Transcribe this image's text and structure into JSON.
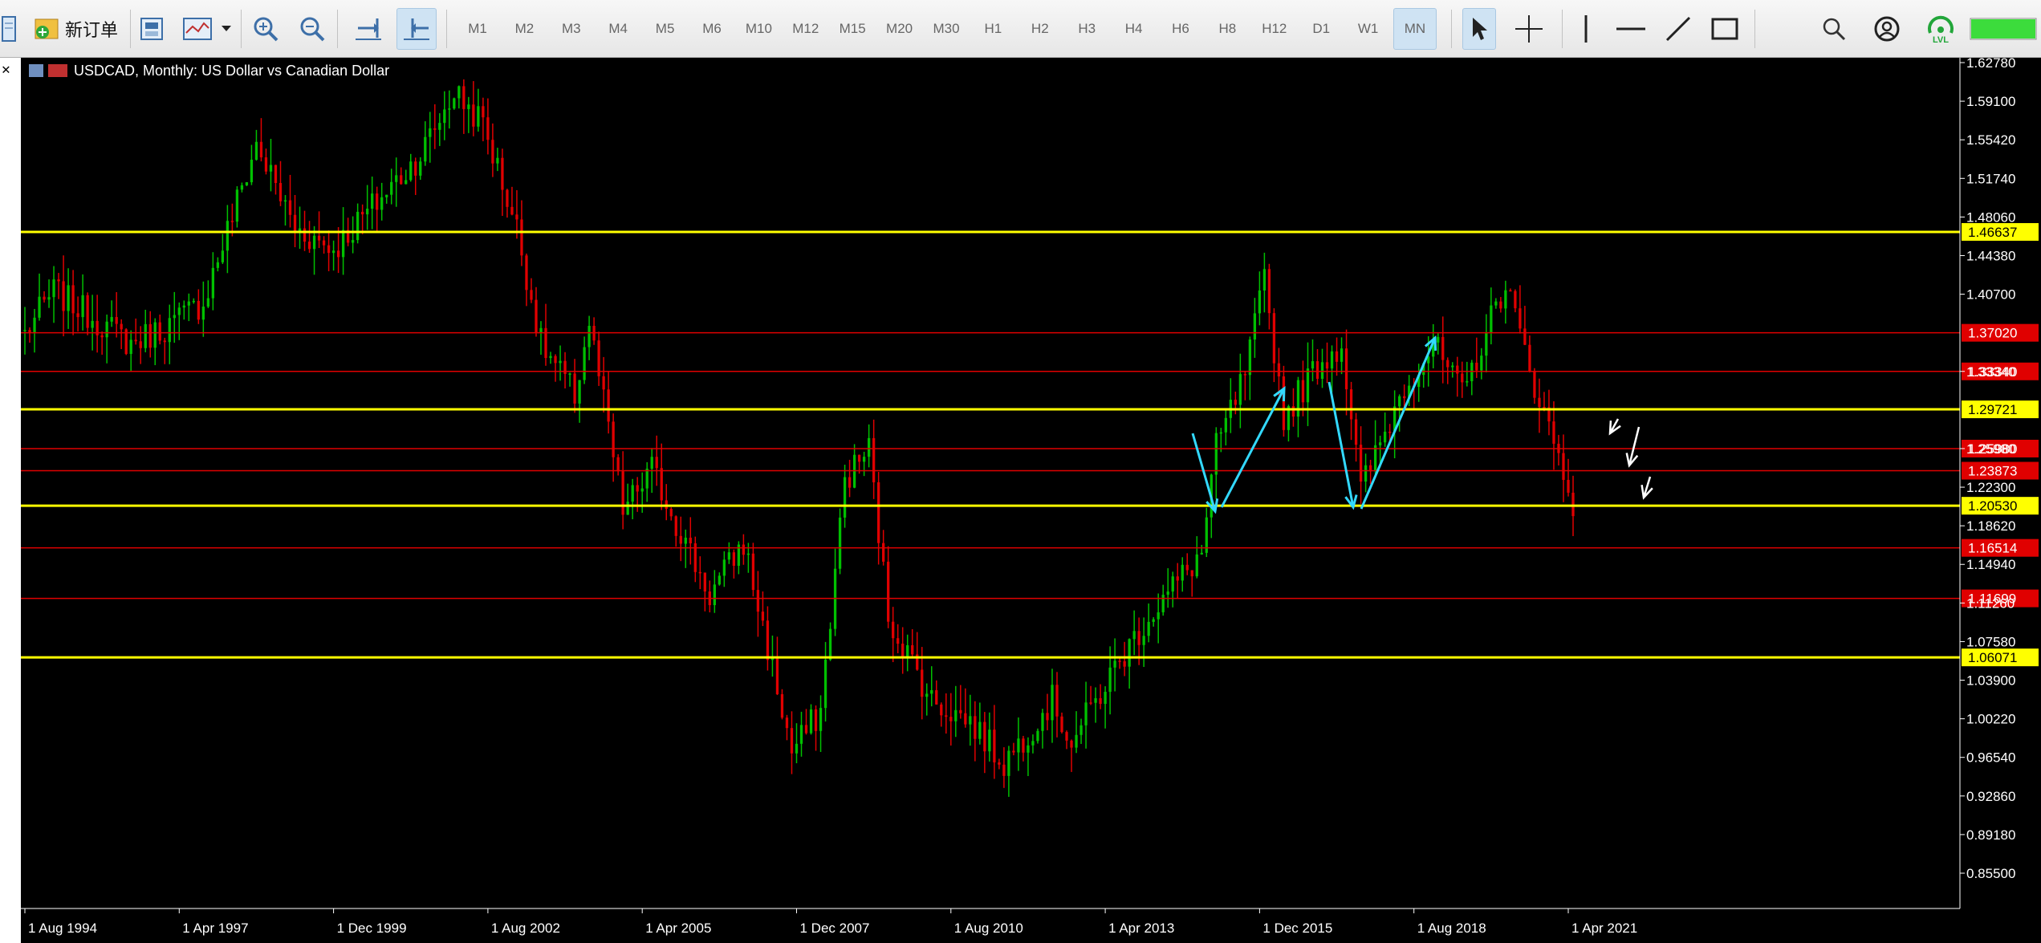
{
  "toolbar": {
    "new_order_label": "新订单",
    "timeframes": [
      "M1",
      "M2",
      "M3",
      "M4",
      "M5",
      "M6",
      "M10",
      "M12",
      "M15",
      "M20",
      "M30",
      "H1",
      "H2",
      "H3",
      "H4",
      "H6",
      "H8",
      "H12",
      "D1",
      "W1",
      "MN"
    ],
    "active_timeframe": "MN",
    "icons": [
      "chart-window-icon",
      "new-order-icon",
      "template-icon",
      "indicators-icon",
      "dropdown-icon",
      "zoom-in-icon",
      "zoom-out-icon",
      "autoscroll-icon",
      "chart-shift-icon",
      "cursor-icon",
      "crosshair-icon",
      "vertical-line-icon",
      "horizontal-line-icon",
      "trendline-icon",
      "rectangle-icon",
      "search-icon",
      "account-icon",
      "lvl-signal-icon",
      "connection-status-icon"
    ],
    "lvl_label": "LVL"
  },
  "chart": {
    "title": "USDCAD, Monthly:  US Dollar vs Canadian Dollar",
    "colors": {
      "background": "#000000",
      "bull": "#00c000",
      "bear": "#e00000",
      "yellow_line": "#ffff00",
      "red_line": "#e00000",
      "arrow": "#33d9ff",
      "white_arrow": "#ffffff"
    },
    "price_labels": [
      "1.62780",
      "1.59100",
      "1.55420",
      "1.51740",
      "1.48060",
      "1.44380",
      "1.40700",
      "1.33340",
      "1.25980",
      "1.22300",
      "1.18620",
      "1.14940",
      "1.11260",
      "1.07580",
      "1.03900",
      "1.00220",
      "0.96540",
      "0.92860",
      "0.89180",
      "0.85500"
    ],
    "yellow_levels": [
      {
        "price": "1.46637",
        "value": 1.46637
      },
      {
        "price": "1.29721",
        "value": 1.29721
      },
      {
        "price": "1.20530",
        "value": 1.2053
      },
      {
        "price": "1.06071",
        "value": 1.06071
      }
    ],
    "red_levels": [
      {
        "price": "1.37020",
        "value": 1.3702
      },
      {
        "price": "1.33340",
        "value": 1.3334
      },
      {
        "price": "1.25980",
        "value": 1.2598
      },
      {
        "price": "1.23873",
        "value": 1.23873
      },
      {
        "price": "1.16514",
        "value": 1.16514
      },
      {
        "price": "1.11699",
        "value": 1.11699
      }
    ],
    "date_labels": [
      "1 Aug 1994",
      "1 Apr 1997",
      "1 Dec 1999",
      "1 Aug 2002",
      "1 Apr 2005",
      "1 Dec 2007",
      "1 Aug 2010",
      "1 Apr 2013",
      "1 Dec 2015",
      "1 Aug 2018",
      "1 Apr 2021"
    ]
  },
  "chart_data": {
    "type": "candlestick",
    "title": "USDCAD, Monthly:  US Dollar vs Canadian Dollar",
    "ylim": [
      0.855,
      1.6278
    ],
    "x_range": [
      "1994-08",
      "2021-05"
    ],
    "price_path": [
      [
        "1994-08",
        1.37
      ],
      [
        "1995-02",
        1.41
      ],
      [
        "1996-06",
        1.36
      ],
      [
        "1997-03",
        1.38
      ],
      [
        "1997-09",
        1.4
      ],
      [
        "1998-08",
        1.55
      ],
      [
        "1999-04",
        1.47
      ],
      [
        "1999-12",
        1.45
      ],
      [
        "2000-08",
        1.49
      ],
      [
        "2001-06",
        1.54
      ],
      [
        "2002-01",
        1.6
      ],
      [
        "2002-07",
        1.57
      ],
      [
        "2003-02",
        1.47
      ],
      [
        "2003-07",
        1.36
      ],
      [
        "2004-02",
        1.31
      ],
      [
        "2004-05",
        1.38
      ],
      [
        "2004-12",
        1.2
      ],
      [
        "2005-06",
        1.24
      ],
      [
        "2006-06",
        1.12
      ],
      [
        "2007-01",
        1.17
      ],
      [
        "2007-06",
        1.07
      ],
      [
        "2007-11",
        0.97
      ],
      [
        "2008-05",
        1.01
      ],
      [
        "2008-10",
        1.23
      ],
      [
        "2009-03",
        1.26
      ],
      [
        "2009-07",
        1.1
      ],
      [
        "2010-04",
        1.02
      ],
      [
        "2010-12",
        1.0
      ],
      [
        "2011-07",
        0.96
      ],
      [
        "2012-05",
        1.02
      ],
      [
        "2012-09",
        0.98
      ],
      [
        "2013-06",
        1.05
      ],
      [
        "2014-01",
        1.1
      ],
      [
        "2014-12",
        1.16
      ],
      [
        "2015-03",
        1.26
      ],
      [
        "2015-09",
        1.33
      ],
      [
        "2016-01",
        1.42
      ],
      [
        "2016-05",
        1.29
      ],
      [
        "2016-12",
        1.34
      ],
      [
        "2017-05",
        1.36
      ],
      [
        "2017-09",
        1.22
      ],
      [
        "2018-06",
        1.32
      ],
      [
        "2018-12",
        1.36
      ],
      [
        "2019-06",
        1.31
      ],
      [
        "2020-03",
        1.42
      ],
      [
        "2020-07",
        1.35
      ],
      [
        "2020-12",
        1.28
      ],
      [
        "2021-05",
        1.21
      ]
    ]
  }
}
